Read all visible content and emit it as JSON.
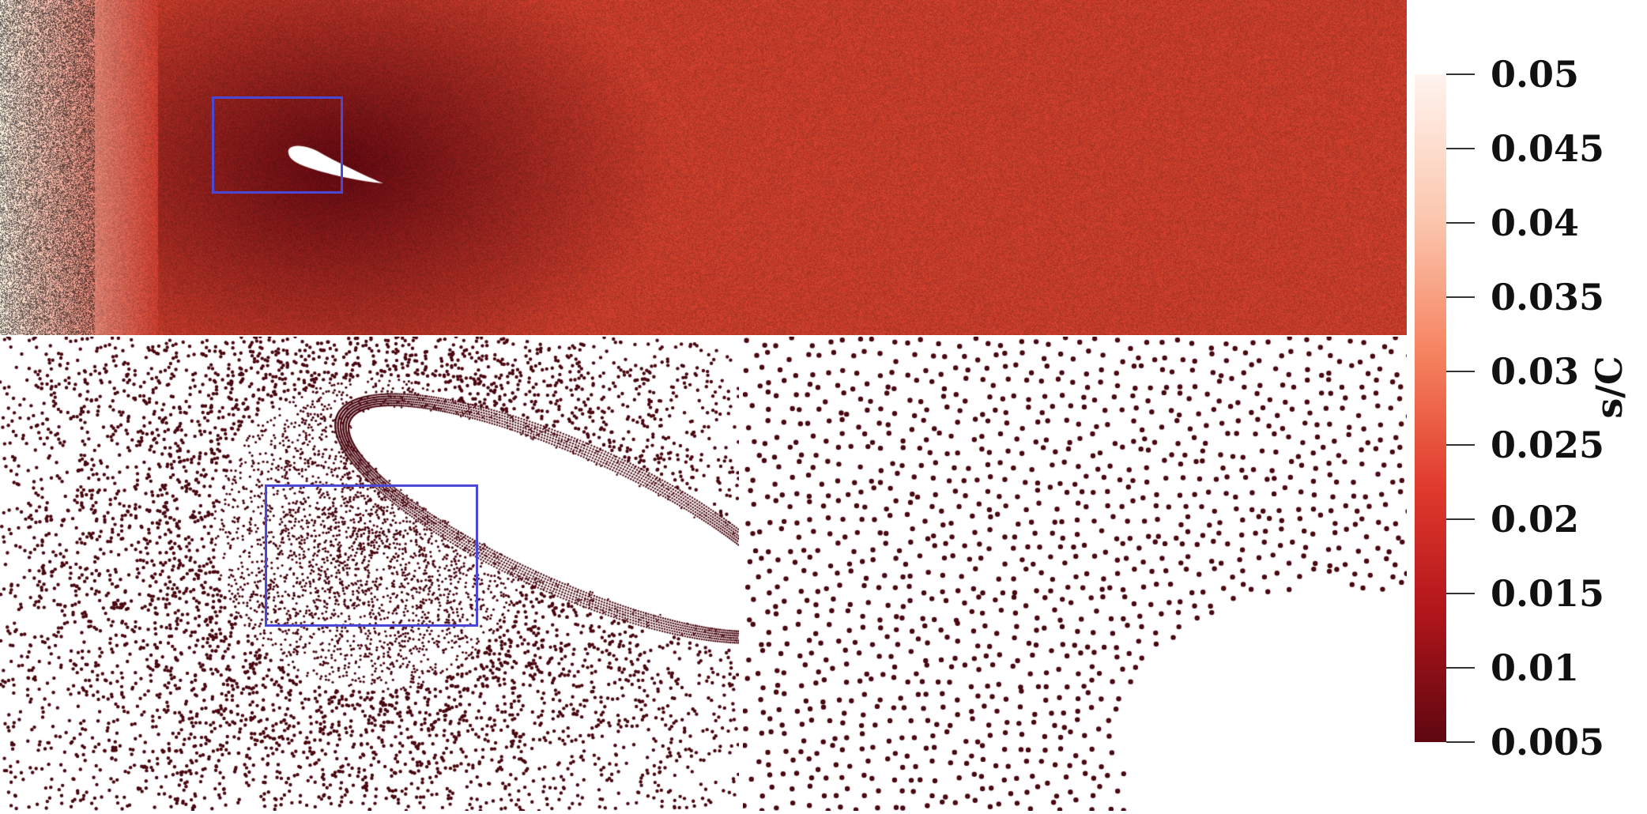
{
  "colorbar": {
    "title": "s/C",
    "min": 0.005,
    "max": 0.05,
    "ticks": [
      "0.05",
      "0.045",
      "0.04",
      "0.035",
      "0.03",
      "0.025",
      "0.02",
      "0.015",
      "0.01",
      "0.005"
    ],
    "colors": {
      "low": "#5e0710",
      "mid": "#e03a2c",
      "high": "#fff4ef"
    }
  },
  "panels": [
    {
      "name": "full-domain-view",
      "marker_color": "#c23a28"
    },
    {
      "name": "zoom-level-1",
      "marker_color": "#4a0811"
    },
    {
      "name": "zoom-level-2",
      "marker_color": "#4a0811"
    }
  ],
  "zoom_box_color": "#4b48d6"
}
